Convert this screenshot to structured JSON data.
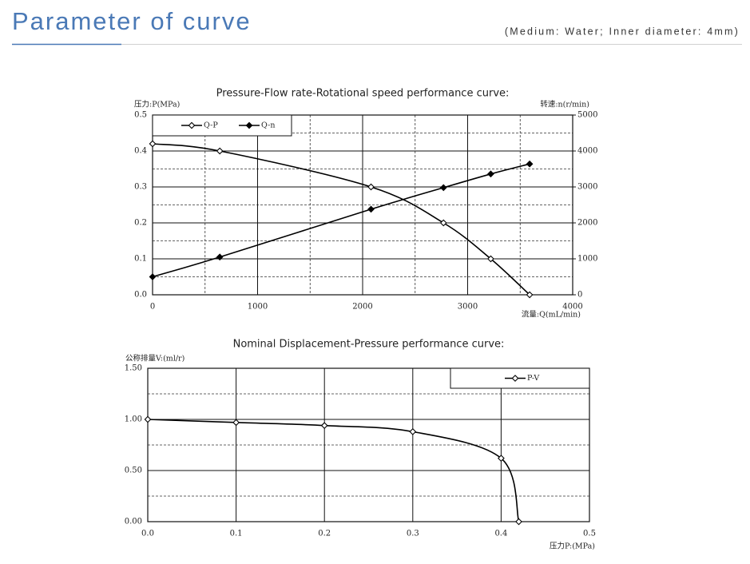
{
  "header": {
    "title": "Parameter of curve",
    "note": "(Medium: Water; Inner diameter: 4mm)"
  },
  "chart_data": [
    {
      "type": "line",
      "title": "Pressure-Flow rate-Rotational speed performance curve:",
      "y_label": "压力:P(MPa)",
      "y2_label": "转速:n(r/min)",
      "x_label": "流量:Q(mL/min)",
      "x": [
        0,
        640,
        2080,
        2770,
        3220,
        3590
      ],
      "xlim": [
        0,
        4000
      ],
      "xticks": [
        0,
        1000,
        2000,
        3000,
        4000
      ],
      "xminor": [
        500,
        1500,
        2500,
        3500
      ],
      "ylim": [
        0,
        0.5
      ],
      "yticks": [
        {
          "value": 0,
          "label": "0.0"
        },
        0.1,
        0.2,
        0.3,
        0.4,
        0.5
      ],
      "yminor": [
        0.05,
        0.15,
        0.25,
        0.35,
        0.45
      ],
      "y2lim": [
        0,
        5000
      ],
      "y2ticks": [
        0,
        1000,
        2000,
        3000,
        4000,
        5000
      ],
      "grid": true,
      "legend": "top-left",
      "series": [
        {
          "name": "Q-P",
          "color": "#000000",
          "marker": "open-diamond",
          "values": [
            0.42,
            0.4,
            0.3,
            0.2,
            0.1,
            0.0
          ]
        },
        {
          "name": "Q-n",
          "color": "#000000",
          "marker": "filled-diamond",
          "axis": "y2",
          "values": [
            500,
            1050,
            2380,
            2980,
            3360,
            3640
          ]
        }
      ]
    },
    {
      "type": "line",
      "title": "Nominal Displacement-Pressure performance curve:",
      "y_label": "公称排量V:(ml/r)",
      "x_label": "压力P:(MPa)",
      "x": [
        0,
        0.1,
        0.2,
        0.3,
        0.4,
        0.42
      ],
      "xlim": [
        0,
        0.5
      ],
      "xticks": [
        {
          "value": 0,
          "label": "0.0"
        },
        0.1,
        0.2,
        0.3,
        0.4,
        0.5
      ],
      "ylim": [
        0,
        1.5
      ],
      "yticks": [
        {
          "value": 0,
          "label": "0.00"
        },
        {
          "value": 0.5,
          "label": "0.50"
        },
        {
          "value": 1,
          "label": "1.00"
        },
        {
          "value": 1.5,
          "label": "1.50"
        }
      ],
      "yminor": [
        0.25,
        0.75,
        1.25
      ],
      "grid": true,
      "legend": "top-right",
      "series": [
        {
          "name": "P-V",
          "color": "#000000",
          "marker": "open-diamond",
          "values": [
            1.0,
            0.97,
            0.94,
            0.88,
            0.62,
            0.0
          ]
        }
      ]
    }
  ]
}
